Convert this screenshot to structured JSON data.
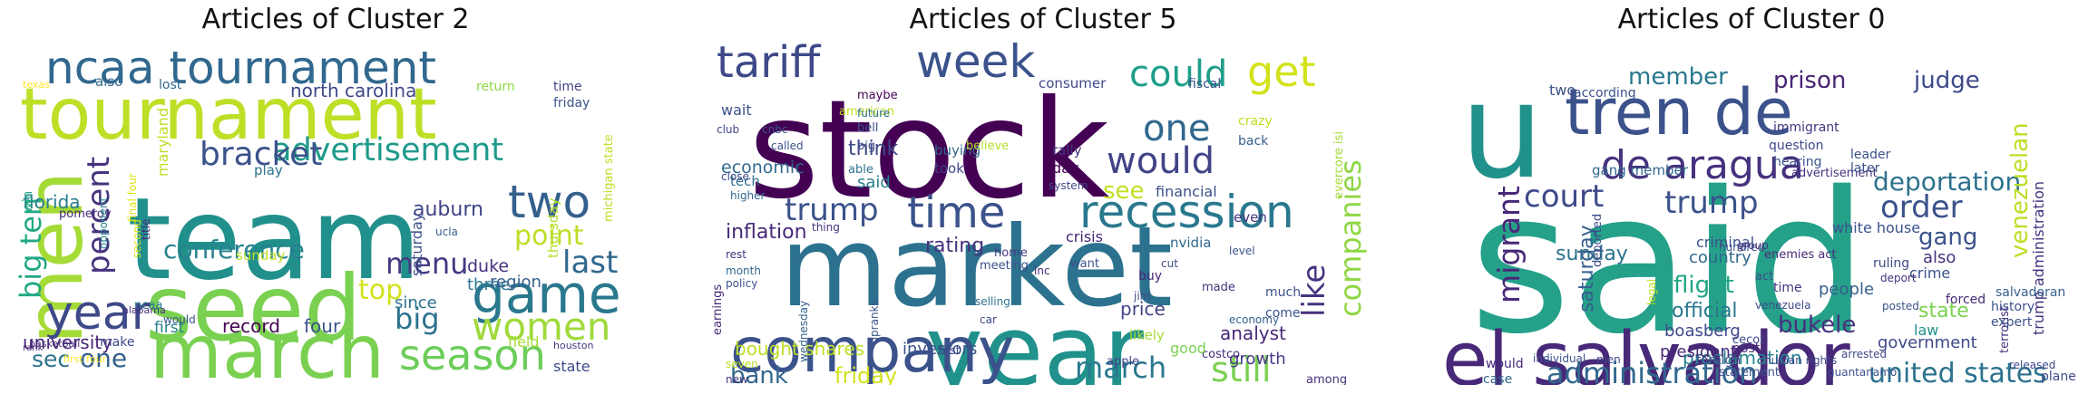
{
  "panels": [
    {
      "title": "Articles of Cluster 2",
      "words": [
        {
          "t": "team",
          "c": "#21908c"
        },
        {
          "t": "tournament",
          "c": "#bddf26"
        },
        {
          "t": "seed",
          "c": "#7ad151"
        },
        {
          "t": "march",
          "c": "#7ad151"
        },
        {
          "t": "ncaa tournament",
          "c": "#31688e"
        },
        {
          "t": "men",
          "c": "#a5db36"
        },
        {
          "t": "game",
          "c": "#2a788e"
        },
        {
          "t": "year",
          "c": "#3e4989"
        },
        {
          "t": "season",
          "c": "#6ccd5a"
        },
        {
          "t": "women",
          "c": "#9fda3a"
        },
        {
          "t": "two",
          "c": "#35608d"
        },
        {
          "t": "advertisement",
          "c": "#1f9a8a"
        },
        {
          "t": "bracket",
          "c": "#3b528b"
        },
        {
          "t": "big ten",
          "c": "#22a884"
        },
        {
          "t": "conference",
          "c": "#26828e"
        },
        {
          "t": "percent",
          "c": "#46327e"
        },
        {
          "t": "point",
          "c": "#bddf26"
        },
        {
          "t": "last",
          "c": "#31688e"
        },
        {
          "t": "menu",
          "c": "#443983"
        },
        {
          "t": "top",
          "c": "#d2e21b"
        },
        {
          "t": "big",
          "c": "#2c728e"
        },
        {
          "t": "north carolina",
          "c": "#3e4989"
        },
        {
          "t": "sec",
          "c": "#2c728e"
        },
        {
          "t": "one",
          "c": "#35608d"
        },
        {
          "t": "university",
          "c": "#482475"
        },
        {
          "t": "florida",
          "c": "#287d8e"
        },
        {
          "t": "first four",
          "c": "#fde725"
        },
        {
          "t": "record",
          "c": "#440154"
        },
        {
          "t": "four",
          "c": "#3b528b"
        },
        {
          "t": "first",
          "c": "#26828e"
        },
        {
          "t": "auburn",
          "c": "#414487"
        },
        {
          "t": "duke",
          "c": "#46327e"
        },
        {
          "t": "three",
          "c": "#2a788e"
        },
        {
          "t": "saturday",
          "c": "#3b528b"
        },
        {
          "t": "sunday",
          "c": "#c2df23"
        },
        {
          "t": "since",
          "c": "#2c728e"
        },
        {
          "t": "region",
          "c": "#35608d"
        },
        {
          "t": "field",
          "c": "#a5db36"
        },
        {
          "t": "state",
          "c": "#3e4989"
        },
        {
          "t": "thursday",
          "c": "#b5de2b"
        },
        {
          "t": "friday",
          "c": "#3b528b"
        },
        {
          "t": "time",
          "c": "#414487"
        },
        {
          "t": "return",
          "c": "#8fd744"
        },
        {
          "t": "play",
          "c": "#2c728e"
        },
        {
          "t": "maryland",
          "c": "#bddf26"
        },
        {
          "t": "also",
          "c": "#31688e"
        },
        {
          "t": "lost",
          "c": "#31688e"
        },
        {
          "t": "win",
          "c": "#22a884"
        },
        {
          "t": "make",
          "c": "#3e4989"
        },
        {
          "t": "basketball",
          "c": "#46327e"
        },
        {
          "t": "houston",
          "c": "#443983"
        },
        {
          "t": "alabama",
          "c": "#482878"
        },
        {
          "t": "ncaa",
          "c": "#2a788e"
        },
        {
          "t": "second",
          "c": "#dde318"
        },
        {
          "t": "ucla",
          "c": "#35608d"
        },
        {
          "t": "michigan state",
          "c": "#bddf26"
        },
        {
          "t": "texas",
          "c": "#fde725"
        },
        {
          "t": "pomeroy",
          "c": "#482878"
        },
        {
          "t": "title",
          "c": "#482475"
        },
        {
          "t": "would",
          "c": "#3b528b"
        },
        {
          "t": "final four",
          "c": "#dde318"
        },
        {
          "t": "opponent",
          "c": "#26828e"
        },
        {
          "t": "rank",
          "c": "#482878"
        }
      ]
    },
    {
      "title": "Articles of Cluster 5",
      "words": [
        {
          "t": "stock",
          "c": "#440154"
        },
        {
          "t": "market",
          "c": "#2c728e"
        },
        {
          "t": "year",
          "c": "#21918c"
        },
        {
          "t": "company",
          "c": "#3b528b"
        },
        {
          "t": "week",
          "c": "#3b528b"
        },
        {
          "t": "tariff",
          "c": "#3e4989"
        },
        {
          "t": "recession",
          "c": "#2a788e"
        },
        {
          "t": "time",
          "c": "#3b528b"
        },
        {
          "t": "get",
          "c": "#d2e21b"
        },
        {
          "t": "could",
          "c": "#1f9e89"
        },
        {
          "t": "would",
          "c": "#414487"
        },
        {
          "t": "one",
          "c": "#31688e"
        },
        {
          "t": "companies",
          "c": "#8fd744"
        },
        {
          "t": "like",
          "c": "#46327e"
        },
        {
          "t": "trump",
          "c": "#3b528b"
        },
        {
          "t": "bank",
          "c": "#31688e"
        },
        {
          "t": "march",
          "c": "#2a788e"
        },
        {
          "t": "still",
          "c": "#7ad151"
        },
        {
          "t": "friday",
          "c": "#d2e21b"
        },
        {
          "t": "bought shares",
          "c": "#bddf26"
        },
        {
          "t": "investors",
          "c": "#3b528b"
        },
        {
          "t": "see",
          "c": "#c2df23"
        },
        {
          "t": "price",
          "c": "#414487"
        },
        {
          "t": "analyst",
          "c": "#482878"
        },
        {
          "t": "growth",
          "c": "#443983"
        },
        {
          "t": "economic",
          "c": "#31688e"
        },
        {
          "t": "inflation",
          "c": "#482878"
        },
        {
          "t": "rating",
          "c": "#46327e"
        },
        {
          "t": "crisis",
          "c": "#482475"
        },
        {
          "t": "think",
          "c": "#3e4989"
        },
        {
          "t": "said",
          "c": "#287d8e"
        },
        {
          "t": "financial",
          "c": "#3b528b"
        },
        {
          "t": "day",
          "c": "#440154"
        },
        {
          "t": "rally",
          "c": "#46327e"
        },
        {
          "t": "nvidia",
          "c": "#31688e"
        },
        {
          "t": "even",
          "c": "#46327e"
        },
        {
          "t": "crazy",
          "c": "#bddf26"
        },
        {
          "t": "back",
          "c": "#35608d"
        },
        {
          "t": "fiscal",
          "c": "#3b528b"
        },
        {
          "t": "consumer",
          "c": "#3e4989"
        },
        {
          "t": "buying",
          "c": "#31688e"
        },
        {
          "t": "took",
          "c": "#414487"
        },
        {
          "t": "tech",
          "c": "#2c728e"
        },
        {
          "t": "wait",
          "c": "#3b528b"
        },
        {
          "t": "maybe",
          "c": "#440154"
        },
        {
          "t": "costco",
          "c": "#472c7a"
        },
        {
          "t": "likely",
          "c": "#a5db36"
        },
        {
          "t": "good",
          "c": "#7ad151"
        },
        {
          "t": "apple",
          "c": "#414487"
        },
        {
          "t": "economy",
          "c": "#35608d"
        },
        {
          "t": "much",
          "c": "#3b528b"
        },
        {
          "t": "come",
          "c": "#3b528b"
        },
        {
          "t": "among",
          "c": "#46327e"
        },
        {
          "t": "earnings",
          "c": "#482878"
        },
        {
          "t": "wednesday",
          "c": "#35608d"
        },
        {
          "t": "tipranks",
          "c": "#3b528b"
        },
        {
          "t": "new",
          "c": "#46327e"
        },
        {
          "t": "seven",
          "c": "#bddf26"
        },
        {
          "t": "home",
          "c": "#443983"
        },
        {
          "t": "meeting",
          "c": "#3b528b"
        },
        {
          "t": "selling",
          "c": "#2c728e"
        },
        {
          "t": "car",
          "c": "#3e4989"
        },
        {
          "t": "buy",
          "c": "#482878"
        },
        {
          "t": "made",
          "c": "#46327e"
        },
        {
          "t": "level",
          "c": "#3b528b"
        },
        {
          "t": "cut",
          "c": "#3e4989"
        },
        {
          "t": "jim",
          "c": "#3e4989"
        },
        {
          "t": "evercore isi",
          "c": "#a5db36"
        },
        {
          "t": "month",
          "c": "#31688e"
        },
        {
          "t": "policy",
          "c": "#3b528b"
        },
        {
          "t": "rest",
          "c": "#46327e"
        },
        {
          "t": "close",
          "c": "#3e4989"
        },
        {
          "t": "called",
          "c": "#3b528b"
        },
        {
          "t": "club",
          "c": "#3e4989"
        },
        {
          "t": "cnbc",
          "c": "#3b528b"
        },
        {
          "t": "bell",
          "c": "#3b528b"
        },
        {
          "t": "system",
          "c": "#3e4989"
        },
        {
          "t": "able",
          "c": "#2c728e"
        },
        {
          "t": "thing",
          "c": "#46327e"
        },
        {
          "t": "higher",
          "c": "#31688e"
        },
        {
          "t": "inc",
          "c": "#482878"
        },
        {
          "t": "want",
          "c": "#3b528b"
        },
        {
          "t": "first",
          "c": "#3e4989"
        },
        {
          "t": "believe",
          "c": "#b5de2b"
        },
        {
          "t": "american",
          "c": "#c2df23"
        },
        {
          "t": "future",
          "c": "#2c728e"
        },
        {
          "t": "big",
          "c": "#3e4989"
        }
      ]
    },
    {
      "title": "Articles of Cluster 0",
      "words": [
        {
          "t": "said",
          "c": "#25a18a"
        },
        {
          "t": "u",
          "c": "#21918c"
        },
        {
          "t": "el salvador",
          "c": "#482878"
        },
        {
          "t": "tren de",
          "c": "#3b528b"
        },
        {
          "t": "de aragua",
          "c": "#46327e"
        },
        {
          "t": "trump",
          "c": "#3b528b"
        },
        {
          "t": "court",
          "c": "#3e4989"
        },
        {
          "t": "administration",
          "c": "#31688e"
        },
        {
          "t": "united states",
          "c": "#2c728e"
        },
        {
          "t": "migrant",
          "c": "#482878"
        },
        {
          "t": "order",
          "c": "#3b528b"
        },
        {
          "t": "prison",
          "c": "#482475"
        },
        {
          "t": "judge",
          "c": "#3e4989"
        },
        {
          "t": "member",
          "c": "#2a788e"
        },
        {
          "t": "gang",
          "c": "#3b528b"
        },
        {
          "t": "deportation",
          "c": "#2c728e"
        },
        {
          "t": "venezuelan",
          "c": "#bddf26"
        },
        {
          "t": "trump administration",
          "c": "#46327e"
        },
        {
          "t": "flight",
          "c": "#21a585"
        },
        {
          "t": "official",
          "c": "#2a788e"
        },
        {
          "t": "sunday",
          "c": "#2c728e"
        },
        {
          "t": "saturday",
          "c": "#35608d"
        },
        {
          "t": "country",
          "c": "#31688e"
        },
        {
          "t": "bukele",
          "c": "#46327e"
        },
        {
          "t": "proclamation",
          "c": "#26828e"
        },
        {
          "t": "government",
          "c": "#3e4989"
        },
        {
          "t": "president",
          "c": "#482878"
        },
        {
          "t": "boasberg",
          "c": "#3e4989"
        },
        {
          "t": "people",
          "c": "#35608d"
        },
        {
          "t": "crime",
          "c": "#3b528b"
        },
        {
          "t": "state",
          "c": "#7ad151"
        },
        {
          "t": "also",
          "c": "#46327e"
        },
        {
          "t": "deported",
          "c": "#3e4989"
        },
        {
          "t": "law",
          "c": "#21918c"
        },
        {
          "t": "two",
          "c": "#3b528b"
        },
        {
          "t": "time",
          "c": "#46327e"
        },
        {
          "t": "post",
          "c": "#482878"
        },
        {
          "t": "would",
          "c": "#482878"
        },
        {
          "t": "case",
          "c": "#31688e"
        },
        {
          "t": "statement",
          "c": "#3b528b"
        },
        {
          "t": "white house",
          "c": "#3b528b"
        },
        {
          "t": "criminal",
          "c": "#3b528b"
        },
        {
          "t": "gang member",
          "c": "#31688e"
        },
        {
          "t": "immigrant",
          "c": "#46327e"
        },
        {
          "t": "foreign",
          "c": "#3b528b"
        },
        {
          "t": "enemies act",
          "c": "#482878"
        },
        {
          "t": "advertisement",
          "c": "#46327e"
        },
        {
          "t": "leader",
          "c": "#3b528b"
        },
        {
          "t": "plane",
          "c": "#3e4989"
        },
        {
          "t": "released",
          "c": "#3e4989"
        },
        {
          "t": "men",
          "c": "#3e4989"
        },
        {
          "t": "legal",
          "c": "#bddf26"
        },
        {
          "t": "terrorist",
          "c": "#46327e"
        },
        {
          "t": "history",
          "c": "#3b528b"
        },
        {
          "t": "expert",
          "c": "#3b528b"
        },
        {
          "t": "hearing",
          "c": "#3b528b"
        },
        {
          "t": "question",
          "c": "#3e4989"
        },
        {
          "t": "according",
          "c": "#3b528b"
        },
        {
          "t": "ruling",
          "c": "#3e4989"
        },
        {
          "t": "deport",
          "c": "#46327e"
        },
        {
          "t": "posted",
          "c": "#3b528b"
        },
        {
          "t": "forced",
          "c": "#482878"
        },
        {
          "t": "later",
          "c": "#3b528b"
        },
        {
          "t": "salvadoran",
          "c": "#35608d"
        },
        {
          "t": "cecot",
          "c": "#3e4989"
        },
        {
          "t": "human rights",
          "c": "#3e4989"
        },
        {
          "t": "individual",
          "c": "#3b528b"
        },
        {
          "t": "hundred",
          "c": "#3b528b"
        },
        {
          "t": "venezuela",
          "c": "#3e4989"
        },
        {
          "t": "guantanamo",
          "c": "#3b528b"
        },
        {
          "t": "act",
          "c": "#3b528b"
        },
        {
          "t": "group",
          "c": "#46327e"
        },
        {
          "t": "arrested",
          "c": "#3e4989"
        }
      ]
    }
  ]
}
